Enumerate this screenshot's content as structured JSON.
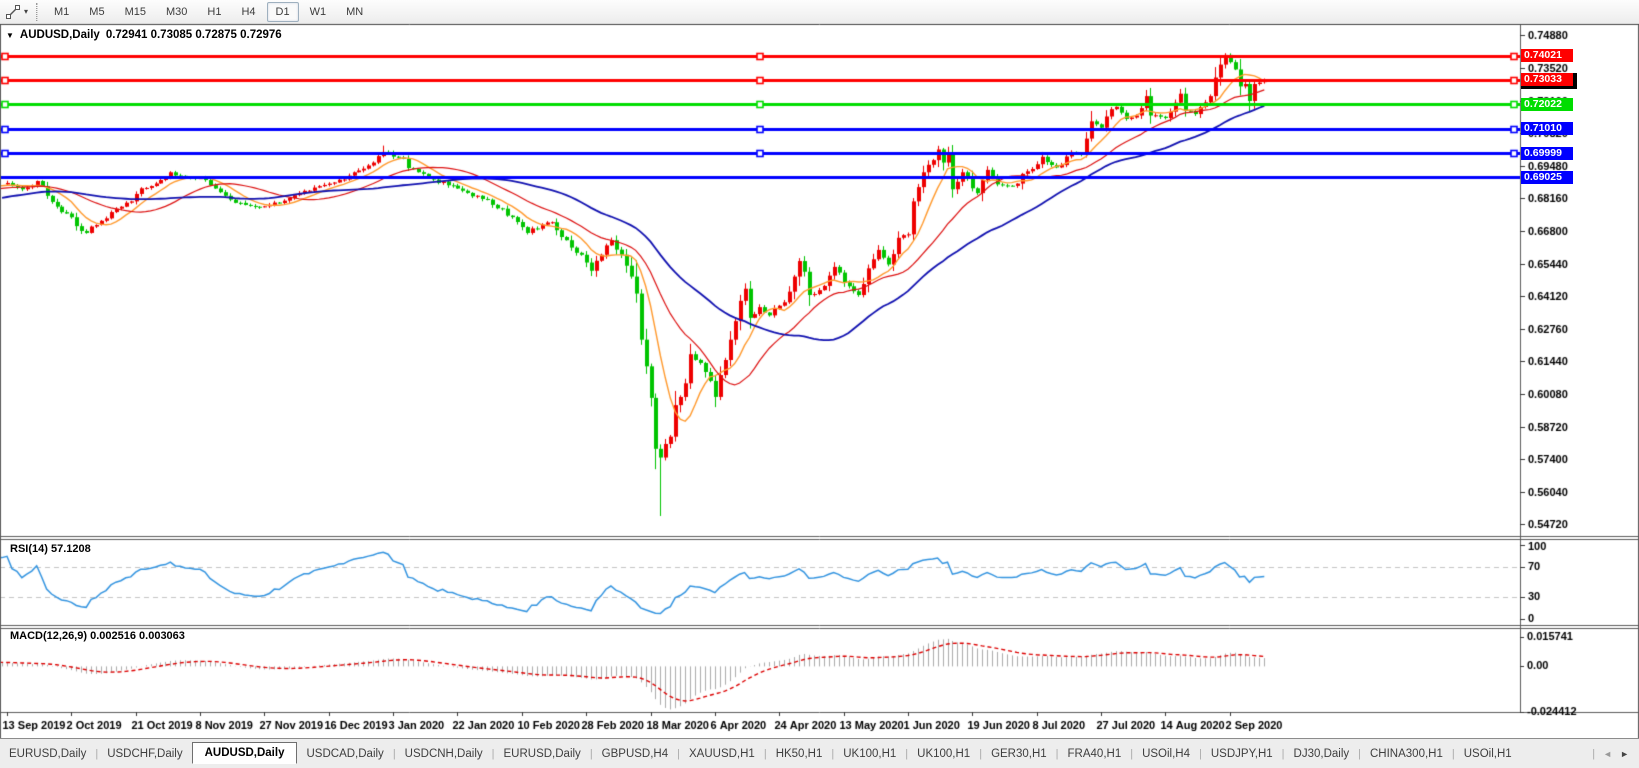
{
  "toolbar": {
    "timeframes": [
      "M1",
      "M5",
      "M15",
      "M30",
      "H1",
      "H4",
      "D1",
      "W1",
      "MN"
    ],
    "active_timeframe": "D1",
    "dropdown_glyph": "▾"
  },
  "chart": {
    "symbol_title": "AUDUSD,Daily",
    "quote_line": "0.72941 0.73085 0.72875 0.72976",
    "title_arrow": "▼"
  },
  "indicators": {
    "rsi_label": "RSI(14)",
    "rsi_value": "57.1208",
    "macd_label": "MACD(12,26,9)",
    "macd_values": "0.002516 0.003063"
  },
  "tabbar": {
    "tabs": [
      "EURUSD,Daily",
      "USDCHF,Daily",
      "AUDUSD,Daily",
      "USDCAD,Daily",
      "USDCNH,Daily",
      "EURUSD,Daily",
      "GBPUSD,H4",
      "XAUUSD,H1",
      "HK50,H1",
      "UK100,H1",
      "UK100,H1",
      "GER30,H1",
      "FRA40,H1",
      "USOil,H4",
      "USDJPY,H1",
      "DJ30,Daily",
      "CHINA300,H1",
      "USOil,H1"
    ],
    "active_index": 2,
    "separator": "|",
    "scroll_left": "◄",
    "scroll_right": "►"
  },
  "chart_data": {
    "type": "candlestick",
    "symbol": "AUDUSD",
    "timeframe": "Daily",
    "last_candle": {
      "open": 0.72941,
      "high": 0.73085,
      "low": 0.72875,
      "close": 0.72976
    },
    "y_axis_ticks": [
      0.7488,
      0.7352,
      0.7216,
      0.7082,
      0.6948,
      0.6816,
      0.668,
      0.6544,
      0.6412,
      0.6276,
      0.6144,
      0.6008,
      0.5872,
      0.574,
      0.5604,
      0.5472
    ],
    "x_labels": [
      "13 Sep 2019",
      "2 Oct 2019",
      "21 Oct 2019",
      "8 Nov 2019",
      "27 Nov 2019",
      "16 Dec 2019",
      "3 Jan 2020",
      "22 Jan 2020",
      "10 Feb 2020",
      "28 Feb 2020",
      "18 Mar 2020",
      "6 Apr 2020",
      "24 Apr 2020",
      "13 May 2020",
      "1 Jun 2020",
      "19 Jun 2020",
      "8 Jul 2020",
      "27 Jul 2020",
      "14 Aug 2020",
      "2 Sep 2020"
    ],
    "candles_per_label": 13,
    "candle_count": 255,
    "candle_colors": {
      "bull": "#ee0000",
      "bear": "#00c400"
    },
    "horizontal_lines": [
      {
        "price": 0.74021,
        "color": "#ff0000",
        "selected": true
      },
      {
        "price": 0.73033,
        "color": "#ff0000",
        "selected": true
      },
      {
        "price": 0.72022,
        "color": "#00dd00",
        "selected": true
      },
      {
        "price": 0.7101,
        "color": "#0000ff",
        "selected": true
      },
      {
        "price": 0.69999,
        "color": "#0000ff",
        "selected": true
      },
      {
        "price": 0.69025,
        "color": "#0000ff",
        "selected": false
      }
    ],
    "current_price_label": {
      "price": 0.72976,
      "color": "#000000"
    },
    "moving_averages": [
      {
        "period": 8,
        "color": "#ff9a2e",
        "width": 1.4
      },
      {
        "period": 20,
        "color": "#dd1111",
        "width": 1.2
      },
      {
        "period": 40,
        "color": "#1111b0",
        "width": 1.8
      }
    ],
    "rsi": {
      "period": 14,
      "value": 57.1208,
      "levels": [
        70,
        30
      ],
      "scale_labels": [
        "100",
        "70",
        "30",
        "0"
      ],
      "color": "#3394e0",
      "level_color": "#c4c4c4"
    },
    "macd": {
      "fast": 12,
      "slow": 26,
      "signal": 9,
      "macd_value": 0.002516,
      "signal_value": 0.003063,
      "scale_max": 0.015741,
      "scale_min": -0.024412,
      "scale_labels": [
        "0.015741",
        "0.00",
        "-0.024412"
      ],
      "histogram_color": "#ababab",
      "signal_color": "#dd0000"
    },
    "pre_anchors": [
      [
        -40,
        0.6732
      ],
      [
        -30,
        0.6776
      ],
      [
        -20,
        0.6838
      ],
      [
        -10,
        0.6858
      ],
      [
        -1,
        0.6872
      ]
    ],
    "close_anchors": [
      [
        0,
        0.6878
      ],
      [
        3,
        0.6852
      ],
      [
        6,
        0.6886
      ],
      [
        9,
        0.68
      ],
      [
        12,
        0.6752
      ],
      [
        14,
        0.67
      ],
      [
        16,
        0.6672
      ],
      [
        19,
        0.6722
      ],
      [
        22,
        0.6772
      ],
      [
        25,
        0.6802
      ],
      [
        27,
        0.6856
      ],
      [
        30,
        0.6876
      ],
      [
        33,
        0.6922
      ],
      [
        36,
        0.6902
      ],
      [
        40,
        0.689
      ],
      [
        43,
        0.684
      ],
      [
        46,
        0.6796
      ],
      [
        50,
        0.678
      ],
      [
        53,
        0.6786
      ],
      [
        57,
        0.6816
      ],
      [
        61,
        0.6846
      ],
      [
        66,
        0.688
      ],
      [
        70,
        0.6922
      ],
      [
        74,
        0.6962
      ],
      [
        76,
        0.7006
      ],
      [
        79,
        0.6982
      ],
      [
        82,
        0.6936
      ],
      [
        86,
        0.6892
      ],
      [
        92,
        0.6846
      ],
      [
        96,
        0.6812
      ],
      [
        100,
        0.6772
      ],
      [
        105,
        0.6672
      ],
      [
        108,
        0.6706
      ],
      [
        110,
        0.6716
      ],
      [
        113,
        0.6642
      ],
      [
        116,
        0.6582
      ],
      [
        118,
        0.6516
      ],
      [
        120,
        0.6582
      ],
      [
        122,
        0.6642
      ],
      [
        124,
        0.6582
      ],
      [
        126,
        0.6492
      ],
      [
        127,
        0.6422
      ],
      [
        128,
        0.6232
      ],
      [
        129,
        0.6122
      ],
      [
        130,
        0.5992
      ],
      [
        131,
        0.5782
      ],
      [
        132,
        0.5746
      ],
      [
        133,
        0.5802
      ],
      [
        134,
        0.5832
      ],
      [
        135,
        0.5962
      ],
      [
        137,
        0.6052
      ],
      [
        138,
        0.6172
      ],
      [
        140,
        0.6136
      ],
      [
        142,
        0.6062
      ],
      [
        143,
        0.5996
      ],
      [
        144,
        0.6086
      ],
      [
        146,
        0.6232
      ],
      [
        148,
        0.6392
      ],
      [
        149,
        0.6442
      ],
      [
        150,
        0.6322
      ],
      [
        152,
        0.6366
      ],
      [
        154,
        0.6332
      ],
      [
        156,
        0.6372
      ],
      [
        157,
        0.6386
      ],
      [
        159,
        0.6492
      ],
      [
        160,
        0.6556
      ],
      [
        161,
        0.6512
      ],
      [
        162,
        0.6416
      ],
      [
        164,
        0.6436
      ],
      [
        166,
        0.6496
      ],
      [
        167,
        0.6532
      ],
      [
        170,
        0.6452
      ],
      [
        172,
        0.6416
      ],
      [
        174,
        0.6526
      ],
      [
        176,
        0.6602
      ],
      [
        178,
        0.6542
      ],
      [
        180,
        0.6652
      ],
      [
        182,
        0.6666
      ],
      [
        183,
        0.6802
      ],
      [
        185,
        0.6922
      ],
      [
        187,
        0.6972
      ],
      [
        188,
        0.7016
      ],
      [
        189,
        0.6962
      ],
      [
        190,
        0.7002
      ],
      [
        191,
        0.6852
      ],
      [
        193,
        0.6922
      ],
      [
        195,
        0.6856
      ],
      [
        196,
        0.6836
      ],
      [
        198,
        0.6932
      ],
      [
        200,
        0.6872
      ],
      [
        203,
        0.6866
      ],
      [
        206,
        0.6926
      ],
      [
        209,
        0.6986
      ],
      [
        212,
        0.6942
      ],
      [
        215,
        0.7006
      ],
      [
        217,
        0.6996
      ],
      [
        219,
        0.7132
      ],
      [
        221,
        0.7106
      ],
      [
        222,
        0.7152
      ],
      [
        224,
        0.7192
      ],
      [
        226,
        0.7142
      ],
      [
        228,
        0.7156
      ],
      [
        230,
        0.7236
      ],
      [
        231,
        0.7156
      ],
      [
        234,
        0.7146
      ],
      [
        235,
        0.7172
      ],
      [
        237,
        0.7246
      ],
      [
        238,
        0.7176
      ],
      [
        240,
        0.7162
      ],
      [
        243,
        0.7236
      ],
      [
        245,
        0.7366
      ],
      [
        246,
        0.7406
      ],
      [
        247,
        0.7376
      ],
      [
        248,
        0.7346
      ],
      [
        249,
        0.7276
      ],
      [
        250,
        0.7286
      ],
      [
        251,
        0.7216
      ],
      [
        252,
        0.7286
      ],
      [
        253,
        0.7292
      ],
      [
        254,
        0.72976
      ]
    ],
    "special_candles": {
      "76": {
        "high": 0.7032
      },
      "131": {
        "low": 0.5698
      },
      "132": {
        "low": 0.5505
      },
      "246": {
        "high": 0.7413
      }
    }
  }
}
